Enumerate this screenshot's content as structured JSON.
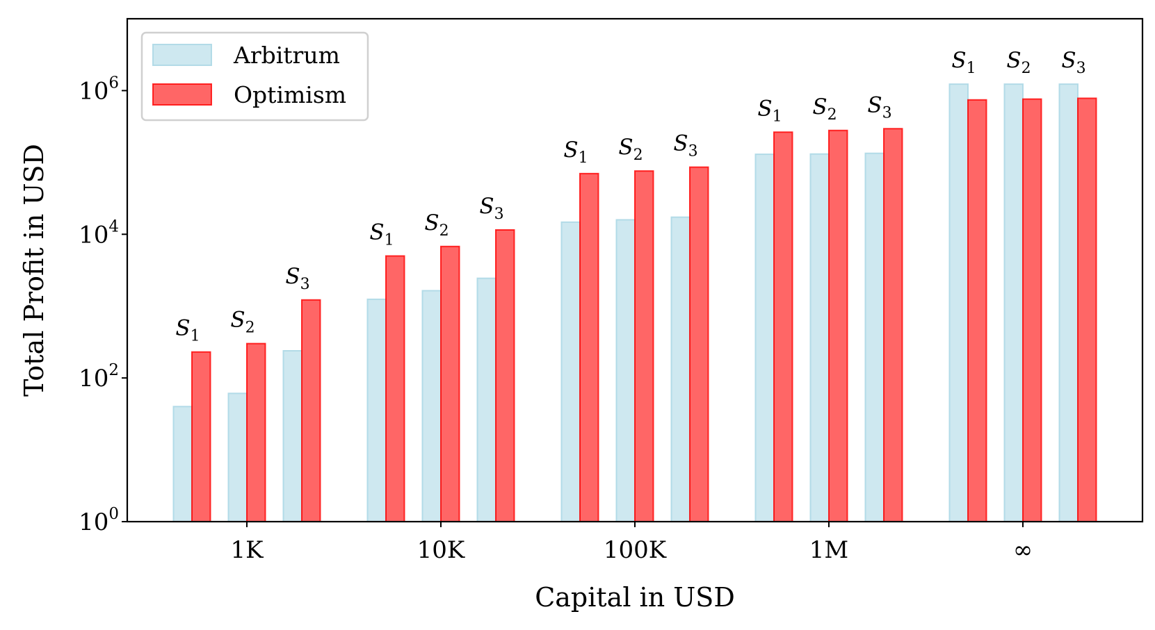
{
  "chart_data": {
    "type": "bar",
    "scale": "log",
    "xlabel": "Capital in USD",
    "ylabel": "Total Profit in USD",
    "ylim": [
      1,
      10000000
    ],
    "yticks": [
      {
        "value": 1,
        "base": "10",
        "exp": "0"
      },
      {
        "value": 100,
        "base": "10",
        "exp": "2"
      },
      {
        "value": 10000,
        "base": "10",
        "exp": "4"
      },
      {
        "value": 1000000,
        "base": "10",
        "exp": "6"
      }
    ],
    "categories": [
      "1K",
      "10K",
      "100K",
      "1M",
      "∞"
    ],
    "strategies": [
      {
        "letter": "S",
        "sub": "1"
      },
      {
        "letter": "S",
        "sub": "2"
      },
      {
        "letter": "S",
        "sub": "3"
      }
    ],
    "legend_position": "top-left",
    "series": [
      {
        "name": "Arbitrum",
        "color": "#add8e6",
        "values": [
          [
            40,
            61,
            239
          ],
          [
            1245,
            1640,
            2440
          ],
          [
            14750,
            15900,
            17300
          ],
          [
            130000,
            131000,
            134000
          ],
          [
            1230000,
            1230000,
            1230000
          ]
        ]
      },
      {
        "name": "Optimism",
        "color": "#ff0000",
        "values": [
          [
            230,
            301,
            1220
          ],
          [
            4990,
            6770,
            11500
          ],
          [
            70000,
            76000,
            86000
          ],
          [
            264000,
            279000,
            295000
          ],
          [
            743000,
            762000,
            782000
          ]
        ]
      }
    ]
  }
}
